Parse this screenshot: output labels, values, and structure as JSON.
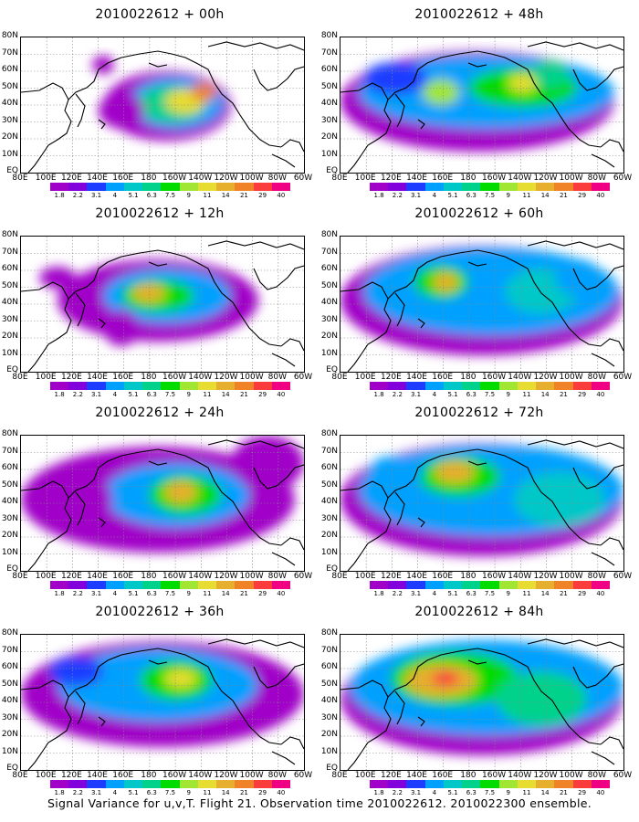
{
  "panels": [
    {
      "title": "2010022612 + 00h"
    },
    {
      "title": "2010022612 + 48h"
    },
    {
      "title": "2010022612 + 12h"
    },
    {
      "title": "2010022612 + 60h"
    },
    {
      "title": "2010022612 + 24h"
    },
    {
      "title": "2010022612 + 72h"
    },
    {
      "title": "2010022612 + 36h"
    },
    {
      "title": "2010022612 + 84h"
    }
  ],
  "lat_labels": [
    "80N",
    "70N",
    "60N",
    "50N",
    "40N",
    "30N",
    "20N",
    "10N",
    "EQ"
  ],
  "lon_labels": [
    "80E",
    "100E",
    "120E",
    "140E",
    "160E",
    "180",
    "160W",
    "140W",
    "120W",
    "100W",
    "80W",
    "60W"
  ],
  "colorbar": {
    "labels": [
      "1.8",
      "2.2",
      "3.1",
      "4",
      "5.1",
      "6.3",
      "7.5",
      "9",
      "11",
      "14",
      "21",
      "29",
      "40"
    ],
    "colors": [
      "#a000c8",
      "#8200dc",
      "#1e3cff",
      "#00a0ff",
      "#00c8c8",
      "#00d28c",
      "#00dc00",
      "#a0e632",
      "#e6dc32",
      "#e6af2d",
      "#f08228",
      "#fa3c3c",
      "#f00082"
    ]
  },
  "footer": "Signal Variance for u,v,T. Flight 21. Observation time 2010022612. 2010022300 ensemble."
}
